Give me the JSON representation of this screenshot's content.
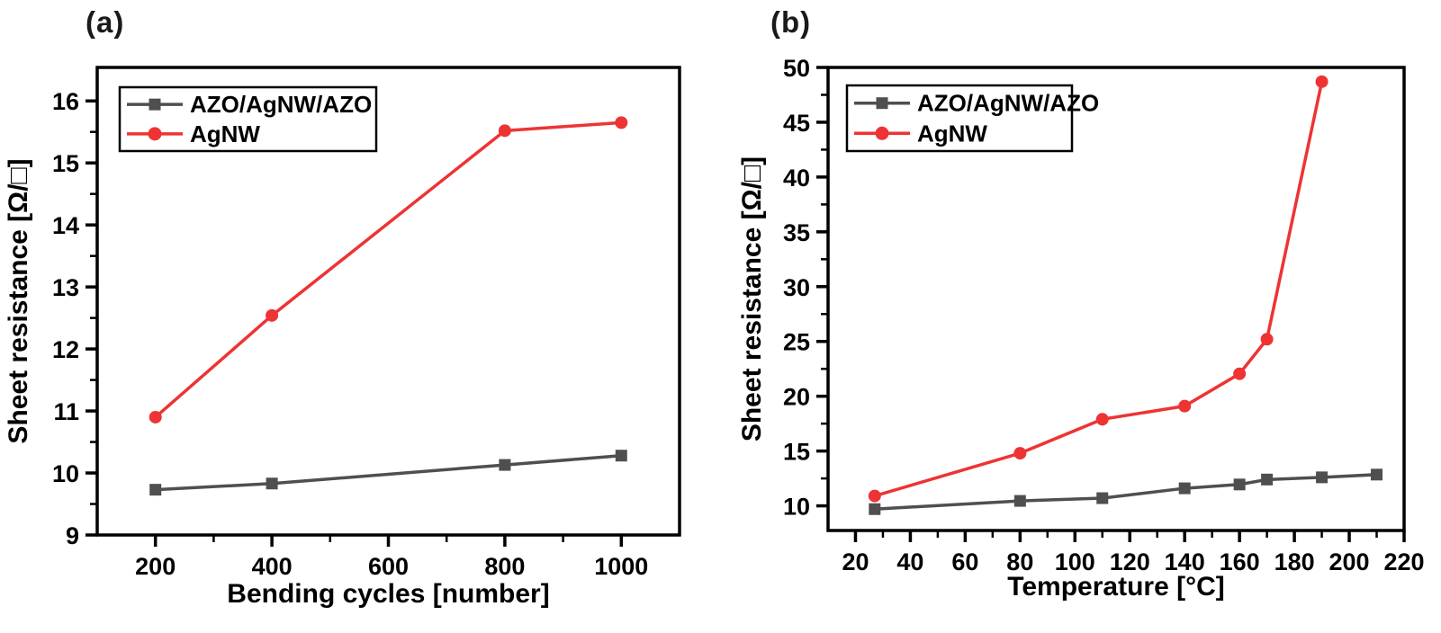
{
  "figure": {
    "background": "#ffffff",
    "panels": [
      {
        "label": "(a)"
      },
      {
        "label": "(b)"
      }
    ],
    "colors": {
      "azo_series": "#4f4f4f",
      "agnw_series": "#ee3334",
      "axis": "#000000"
    }
  },
  "chart_data": [
    {
      "id": "chart-a",
      "type": "line",
      "panel": "(a)",
      "title": "",
      "xlabel": "Bending cycles [number]",
      "ylabel": "Sheet resistance [Ω/□]",
      "xlim": [
        100,
        1100
      ],
      "ylim": [
        9,
        16.54
      ],
      "x_ticks": [
        200,
        400,
        600,
        800,
        1000
      ],
      "x_minor_ticks": [
        300,
        500,
        700,
        900
      ],
      "y_ticks": [
        9,
        10,
        11,
        12,
        13,
        14,
        15,
        16
      ],
      "y_minor_ticks": [
        9.5,
        10.5,
        11.5,
        12.5,
        13.5,
        14.5,
        15.5
      ],
      "grid": false,
      "legend_position": "top-left",
      "legend": [
        "AZO/AgNW/AZO",
        "AgNW"
      ],
      "series": [
        {
          "name": "AZO/AgNW/AZO",
          "color": "#4f4f4f",
          "marker": "square",
          "x": [
            200,
            400,
            800,
            1000
          ],
          "y": [
            9.73,
            9.83,
            10.13,
            10.28
          ]
        },
        {
          "name": "AgNW",
          "color": "#ee3334",
          "marker": "circle",
          "x": [
            200,
            400,
            800,
            1000
          ],
          "y": [
            10.9,
            12.54,
            15.52,
            15.65
          ]
        }
      ]
    },
    {
      "id": "chart-b",
      "type": "line",
      "panel": "(b)",
      "title": "",
      "xlabel": "Temperature [°C]",
      "ylabel": "Sheet resistance [Ω/□]",
      "xlim": [
        10,
        220
      ],
      "ylim": [
        7.75,
        50
      ],
      "x_ticks": [
        20,
        40,
        60,
        80,
        100,
        120,
        140,
        160,
        180,
        200,
        220
      ],
      "x_minor_ticks": [
        30,
        50,
        70,
        90,
        110,
        130,
        150,
        170,
        190,
        210
      ],
      "y_ticks": [
        10,
        15,
        20,
        25,
        30,
        35,
        40,
        45,
        50
      ],
      "y_minor_ticks": [
        12.5,
        17.5,
        22.5,
        27.5,
        32.5,
        37.5,
        42.5,
        47.5
      ],
      "grid": false,
      "legend_position": "top-left",
      "legend": [
        "AZO/AgNW/AZO",
        "AgNW"
      ],
      "series": [
        {
          "name": "AZO/AgNW/AZO",
          "color": "#4f4f4f",
          "marker": "square",
          "x": [
            27,
            80,
            110,
            140,
            160,
            170,
            190,
            210
          ],
          "y": [
            9.7,
            10.45,
            10.7,
            11.6,
            11.95,
            12.4,
            12.6,
            12.85
          ]
        },
        {
          "name": "AgNW",
          "color": "#ee3334",
          "marker": "circle",
          "x": [
            27,
            80,
            110,
            140,
            160,
            170,
            190
          ],
          "y": [
            10.9,
            14.8,
            17.9,
            19.1,
            22.05,
            25.2,
            48.7
          ]
        }
      ]
    }
  ]
}
